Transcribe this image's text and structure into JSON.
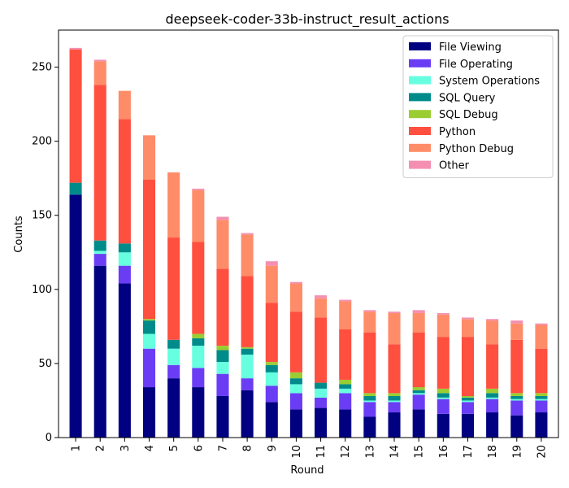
{
  "chart_data": {
    "type": "bar",
    "stacked": true,
    "title": "deepseek-coder-33b-instruct_result_actions",
    "xlabel": "Round",
    "ylabel": "Counts",
    "ylim": [
      0,
      275
    ],
    "yticks": [
      0,
      50,
      100,
      150,
      200,
      250
    ],
    "grid": false,
    "legend_position": "top-right",
    "categories": [
      "1",
      "2",
      "3",
      "4",
      "5",
      "6",
      "7",
      "8",
      "9",
      "10",
      "11",
      "12",
      "13",
      "14",
      "15",
      "16",
      "17",
      "18",
      "19",
      "20"
    ],
    "series": [
      {
        "name": "File Viewing",
        "color": "#000080",
        "values": [
          164,
          116,
          104,
          34,
          40,
          34,
          28,
          32,
          24,
          19,
          20,
          19,
          14,
          17,
          19,
          16,
          16,
          17,
          15,
          17
        ]
      },
      {
        "name": "File Operating",
        "color": "#6a3df5",
        "values": [
          0,
          8,
          12,
          26,
          9,
          13,
          15,
          8,
          11,
          11,
          7,
          11,
          10,
          7,
          10,
          10,
          8,
          9,
          10,
          8
        ]
      },
      {
        "name": "System Operations",
        "color": "#66ffe0",
        "values": [
          0,
          2,
          9,
          10,
          11,
          15,
          8,
          16,
          9,
          6,
          6,
          3,
          1,
          1,
          1,
          1,
          1,
          1,
          1,
          1
        ]
      },
      {
        "name": "SQL Query",
        "color": "#008b8b",
        "values": [
          8,
          7,
          6,
          9,
          6,
          5,
          8,
          4,
          5,
          4,
          4,
          3,
          3,
          3,
          2,
          3,
          2,
          3,
          2,
          2
        ]
      },
      {
        "name": "SQL Debug",
        "color": "#9acd32",
        "values": [
          0,
          0,
          0,
          1,
          0,
          3,
          3,
          1,
          2,
          4,
          0,
          3,
          2,
          2,
          2,
          3,
          1,
          3,
          2,
          2
        ]
      },
      {
        "name": "Python",
        "color": "#ff4f3f",
        "values": [
          90,
          105,
          84,
          94,
          69,
          62,
          52,
          48,
          40,
          41,
          44,
          34,
          41,
          33,
          37,
          35,
          40,
          30,
          36,
          30
        ]
      },
      {
        "name": "Python Debug",
        "color": "#ff8c69",
        "values": [
          0,
          16,
          19,
          30,
          44,
          35,
          33,
          28,
          25,
          19,
          13,
          19,
          14,
          21,
          13,
          15,
          12,
          16,
          11,
          16
        ]
      },
      {
        "name": "Other",
        "color": "#f48fb1",
        "values": [
          1,
          1,
          0,
          0,
          0,
          1,
          2,
          1,
          3,
          1,
          2,
          1,
          1,
          1,
          2,
          1,
          1,
          1,
          2,
          1
        ]
      }
    ]
  }
}
